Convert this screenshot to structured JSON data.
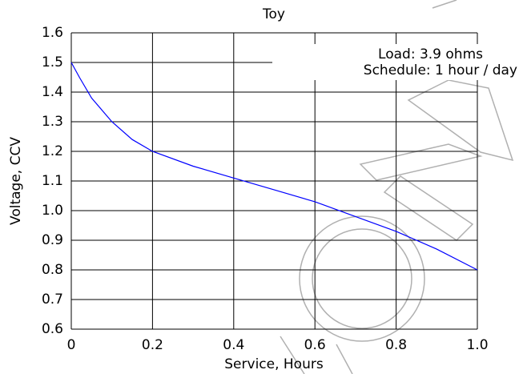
{
  "chart_data": {
    "type": "line",
    "title": "Toy",
    "x_label": "Service, Hours",
    "y_label": "Voltage, CCV",
    "annotations": [
      "Load: 3.9 ohms",
      "Schedule: 1 hour / day"
    ],
    "x": [
      0,
      0.02,
      0.05,
      0.1,
      0.15,
      0.2,
      0.3,
      0.4,
      0.5,
      0.6,
      0.7,
      0.8,
      0.9,
      1.0
    ],
    "values": [
      1.5,
      1.45,
      1.38,
      1.3,
      1.24,
      1.2,
      1.15,
      1.11,
      1.07,
      1.03,
      0.98,
      0.93,
      0.87,
      0.8
    ],
    "color": "#0000ff",
    "xlim": [
      0,
      1
    ],
    "xticks": [
      0,
      0.2,
      0.4,
      0.6,
      0.8,
      {
        "value": 1,
        "label": "1.0"
      }
    ],
    "ylim": [
      0.6,
      1.6
    ],
    "yticks": [
      0.6,
      0.7,
      0.8,
      0.9,
      {
        "value": 1,
        "label": "1.0"
      },
      1.1,
      1.2,
      1.3,
      1.4,
      1.5,
      1.6
    ],
    "grid": true
  }
}
